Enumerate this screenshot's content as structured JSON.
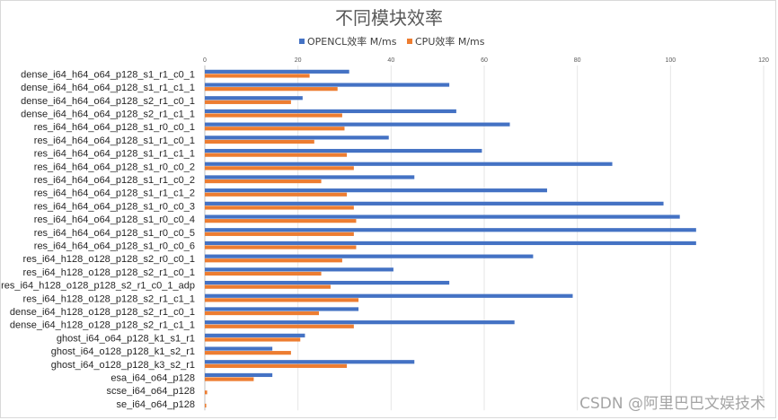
{
  "chart_data": {
    "type": "bar",
    "orientation": "horizontal",
    "title": "不同模块效率",
    "xlim": [
      0,
      120
    ],
    "xticks": [
      0,
      20,
      40,
      60,
      80,
      100,
      120
    ],
    "legend_position": "top-right",
    "categories": [
      "dense_i64_h64_o64_p128_s1_r1_c0_1",
      "dense_i64_h64_o64_p128_s1_r1_c1_1",
      "dense_i64_h64_o64_p128_s2_r1_c0_1",
      "dense_i64_h64_o64_p128_s2_r1_c1_1",
      "res_i64_h64_o64_p128_s1_r0_c0_1",
      "res_i64_h64_o64_p128_s1_r1_c0_1",
      "res_i64_h64_o64_p128_s1_r1_c1_1",
      "res_i64_h64_o64_p128_s1_r0_c0_2",
      "res_i64_h64_o64_p128_s1_r1_c0_2",
      "res_i64_h64_o64_p128_s1_r1_c1_2",
      "res_i64_h64_o64_p128_s1_r0_c0_3",
      "res_i64_h64_o64_p128_s1_r0_c0_4",
      "res_i64_h64_o64_p128_s1_r0_c0_5",
      "res_i64_h64_o64_p128_s1_r0_c0_6",
      "res_i64_h128_o128_p128_s2_r0_c0_1",
      "res_i64_h128_o128_p128_s2_r1_c0_1",
      "res_i64_h128_o128_p128_s2_r1_c0_1_adp",
      "res_i64_h128_o128_p128_s2_r1_c1_1",
      "dense_i64_h128_o128_p128_s2_r1_c0_1",
      "dense_i64_h128_o128_p128_s2_r1_c1_1",
      "ghost_i64_o64_p128_k1_s1_r1",
      "ghost_i64_o128_p128_k1_s2_r1",
      "ghost_i64_o128_p128_k3_s2_r1",
      "esa_i64_o64_p128",
      "scse_i64_o64_p128",
      "se_i64_o64_p128"
    ],
    "series": [
      {
        "name": "OPENCL效率 M/ms",
        "color": "#4472c4",
        "values": [
          31,
          52.5,
          21,
          54,
          65.5,
          39.5,
          59.5,
          87.5,
          45,
          73.5,
          98.5,
          102,
          105.5,
          105.5,
          70.5,
          40.5,
          52.5,
          79,
          33,
          66.5,
          21.5,
          14.5,
          45,
          14.5,
          0,
          0
        ]
      },
      {
        "name": "CPU效率 M/ms",
        "color": "#ed7d31",
        "values": [
          22.5,
          28.5,
          18.5,
          29.5,
          30,
          23.5,
          30.5,
          32,
          25,
          30.5,
          32,
          32.5,
          32,
          32.5,
          29.5,
          25,
          27,
          33,
          24.5,
          32,
          20.5,
          18.5,
          30.5,
          10.5,
          0.5,
          0.3
        ]
      }
    ]
  },
  "watermark": "CSDN @阿里巴巴文娱技术"
}
